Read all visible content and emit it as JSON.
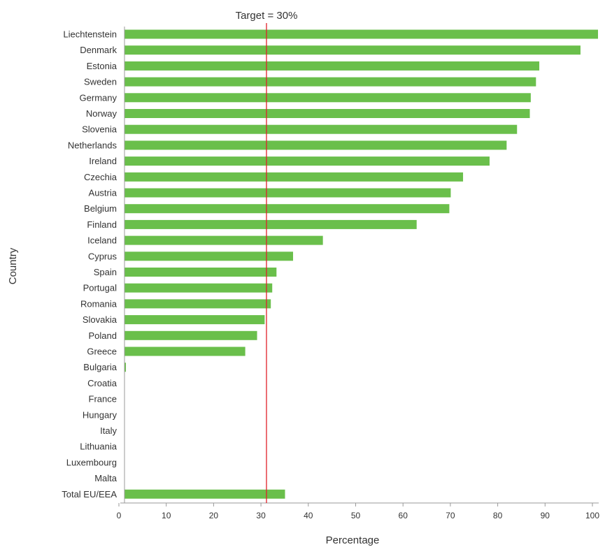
{
  "chart_data": {
    "type": "bar",
    "orientation": "horizontal",
    "categories": [
      "Liechtenstein",
      "Denmark",
      "Estonia",
      "Sweden",
      "Germany",
      "Norway",
      "Slovenia",
      "Netherlands",
      "Ireland",
      "Czechia",
      "Austria",
      "Belgium",
      "Finland",
      "Iceland",
      "Cyprus",
      "Spain",
      "Portugal",
      "Romania",
      "Slovakia",
      "Poland",
      "Greece",
      "Bulgaria",
      "Croatia",
      "France",
      "Hungary",
      "Italy",
      "Lithuania",
      "Luxembourg",
      "Malta",
      "Total EU/EEA"
    ],
    "values": [
      100,
      96.3,
      87.6,
      86.9,
      85.8,
      85.6,
      82.9,
      80.7,
      77.1,
      71.5,
      68.9,
      68.6,
      61.7,
      41.9,
      35.6,
      32.1,
      31.2,
      30.9,
      29.6,
      28.0,
      25.5,
      0.3,
      0,
      0,
      0,
      0,
      0,
      0,
      0,
      33.9
    ],
    "xlabel": "Percentage",
    "ylabel": "Country",
    "xlim": [
      0,
      100
    ],
    "xticks": [
      0,
      10,
      20,
      30,
      40,
      50,
      60,
      70,
      80,
      90,
      100
    ],
    "grid": false,
    "bar_color": "#6abf4b",
    "target": {
      "value": 30,
      "label": "Target = 30%",
      "color": "#e0202a"
    }
  }
}
